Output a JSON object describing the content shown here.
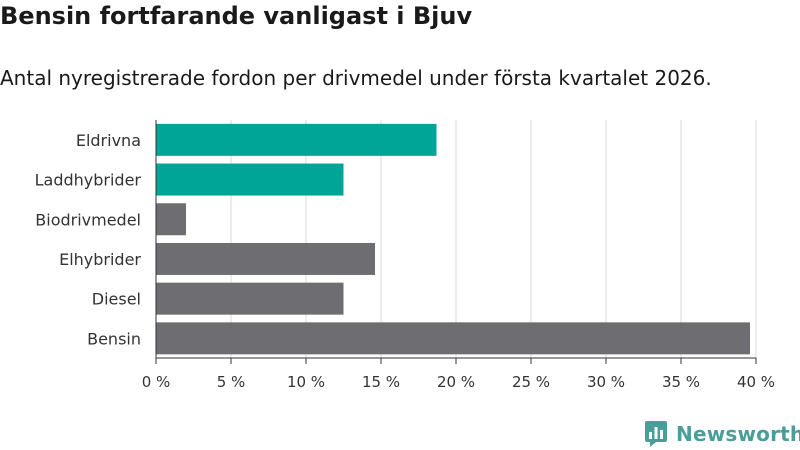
{
  "title": "Bensin fortfarande vanligast i Bjuv",
  "subtitle": "Antal nyregistrerade fordon per drivmedel under första kvartalet 2026.",
  "brand": {
    "name": "Newsworthy",
    "icon": "newsworthy-logo-icon"
  },
  "colors": {
    "highlight": "#00a598",
    "default": "#6e6d72",
    "grid": "#d9d9d9",
    "axis": "#333333"
  },
  "chart_data": {
    "type": "bar",
    "orientation": "horizontal",
    "categories": [
      "Eldrivna",
      "Laddhybrider",
      "Biodrivmedel",
      "Elhybrider",
      "Diesel",
      "Bensin"
    ],
    "values": [
      18.7,
      12.5,
      2.0,
      14.6,
      12.5,
      39.6
    ],
    "highlighted": [
      true,
      true,
      false,
      false,
      false,
      false
    ],
    "xlim": [
      0,
      40
    ],
    "xticks": [
      0,
      5,
      10,
      15,
      20,
      25,
      30,
      35,
      40
    ],
    "tick_suffix": " %",
    "grid": true,
    "title": "Bensin fortfarande vanligast i Bjuv",
    "xlabel": "",
    "ylabel": ""
  }
}
